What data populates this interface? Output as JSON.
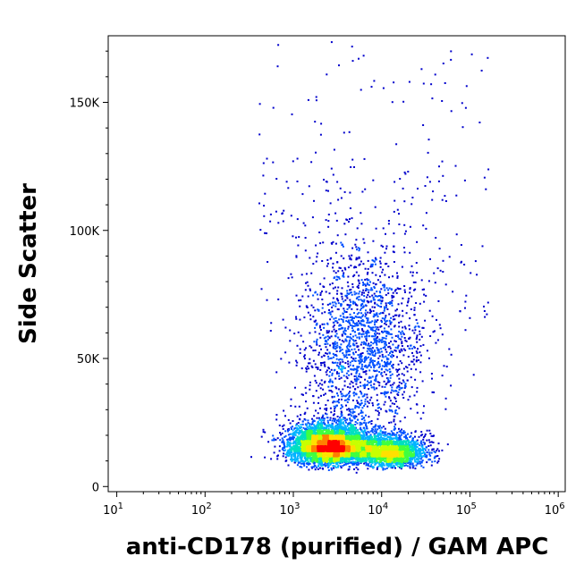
{
  "chart_data": {
    "type": "scatter",
    "subtype": "flow-cytometry-density-dot-plot",
    "xlabel": "anti-CD178 (purified) / GAM APC",
    "ylabel": "Side Scatter",
    "x_scale": "log",
    "xlim": [
      8,
      1200000
    ],
    "ylim": [
      -2000,
      176000
    ],
    "x_ticks": [
      {
        "value": 10,
        "base": "10",
        "exp": "1"
      },
      {
        "value": 100,
        "base": "10",
        "exp": "2"
      },
      {
        "value": 1000,
        "base": "10",
        "exp": "3"
      },
      {
        "value": 10000,
        "base": "10",
        "exp": "4"
      },
      {
        "value": 100000,
        "base": "10",
        "exp": "5"
      },
      {
        "value": 1000000,
        "base": "10",
        "exp": "6"
      }
    ],
    "y_ticks": [
      {
        "value": 0,
        "label": "0"
      },
      {
        "value": 50000,
        "label": "50K"
      },
      {
        "value": 100000,
        "label": "100K"
      },
      {
        "value": 150000,
        "label": "150K"
      }
    ],
    "populations": [
      {
        "center_x": 2500,
        "center_y": 14000,
        "spread_log_x": 0.22,
        "spread_y": 5000,
        "relative_density": 1.0
      },
      {
        "center_x": 12000,
        "center_y": 12000,
        "spread_log_x": 0.2,
        "spread_y": 4000,
        "relative_density": 0.45
      },
      {
        "center_x": 6000,
        "center_y": 45000,
        "spread_log_x": 0.35,
        "spread_y": 25000,
        "relative_density": 0.35
      }
    ],
    "density_colors": [
      "#0000cc",
      "#0050ff",
      "#00b4ff",
      "#00e0c0",
      "#40ff40",
      "#c8ff00",
      "#ffe000",
      "#ff8000",
      "#ff0000"
    ],
    "grid": false
  }
}
